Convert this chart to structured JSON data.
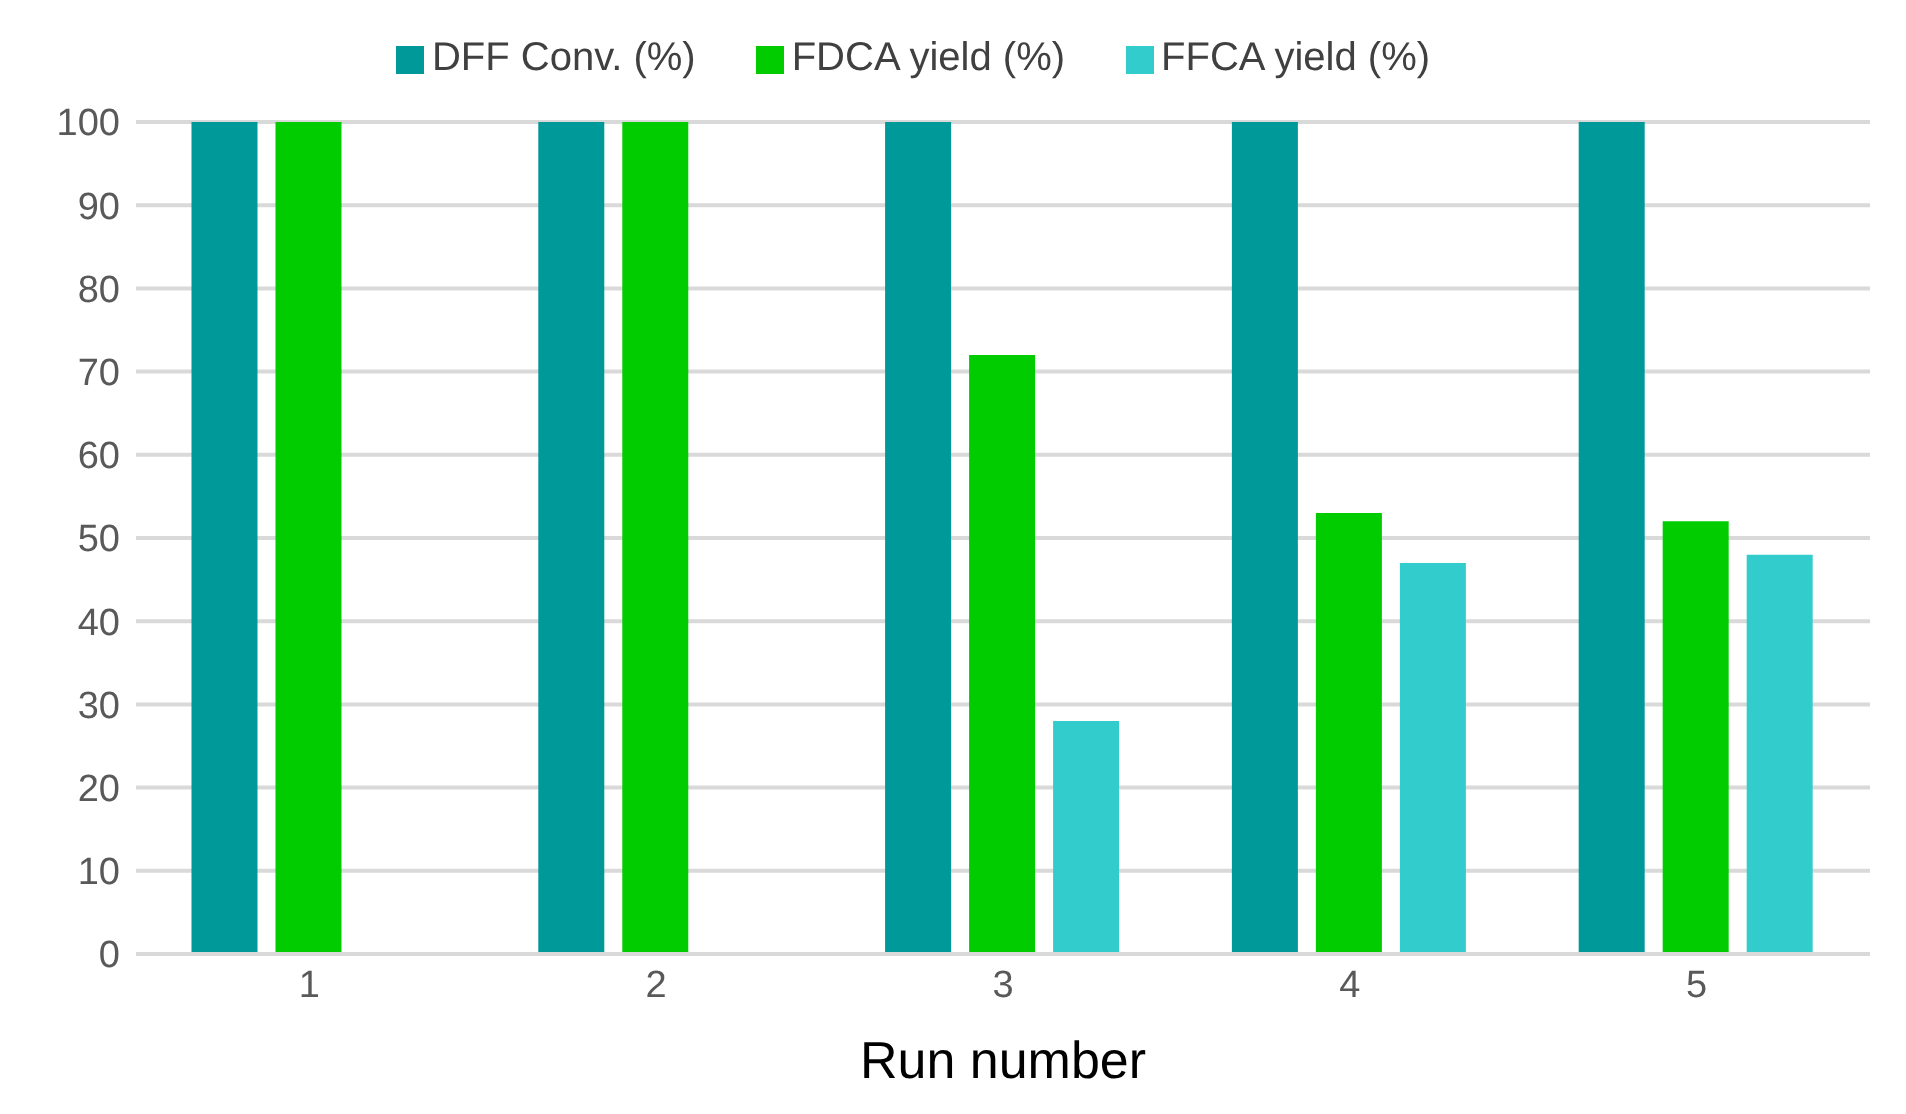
{
  "chart_data": {
    "type": "bar",
    "xlabel": "Run number",
    "categories": [
      "1",
      "2",
      "3",
      "4",
      "5"
    ],
    "series": [
      {
        "name": "DFF Conv. (%)",
        "color": "#009999",
        "values": [
          100,
          100,
          100,
          100,
          100
        ]
      },
      {
        "name": "FDCA yield (%)",
        "color": "#00cc00",
        "values": [
          100,
          100,
          72,
          53,
          52
        ]
      },
      {
        "name": "FFCA yield (%)",
        "color": "#33cccc",
        "values": [
          0,
          0,
          28,
          47,
          48
        ]
      }
    ],
    "ylim": [
      0,
      100
    ],
    "yticks": [
      0,
      10,
      20,
      30,
      40,
      50,
      60,
      70,
      80,
      90,
      100
    ],
    "grid": "y",
    "legend": "top"
  }
}
